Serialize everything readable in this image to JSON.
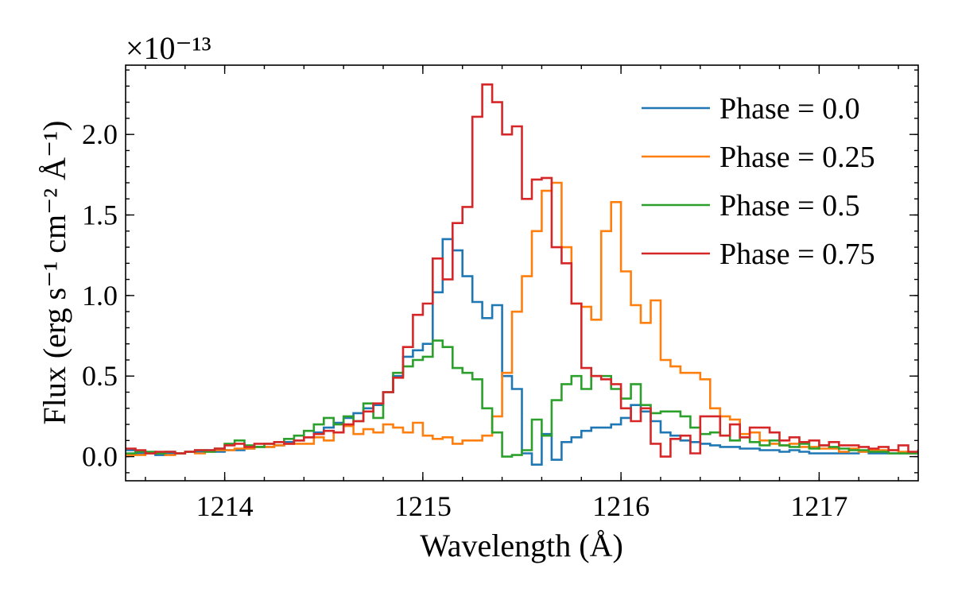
{
  "chart_data": {
    "type": "line",
    "step": "post",
    "xlabel": "Wavelength (Å)",
    "ylabel": "Flux (erg s⁻¹ cm⁻² Å⁻¹)",
    "y_offset_label": "×10⁻¹³",
    "xlim": [
      1213.5,
      1217.5
    ],
    "ylim": [
      -0.15,
      2.43
    ],
    "x_ticks": [
      1214,
      1215,
      1216,
      1217
    ],
    "x_tick_labels": [
      "1214",
      "1215",
      "1216",
      "1217"
    ],
    "y_ticks": [
      0.0,
      0.5,
      1.0,
      1.5,
      2.0
    ],
    "y_tick_labels": [
      "0.0",
      "0.5",
      "1.0",
      "1.5",
      "2.0"
    ],
    "grid": false,
    "legend_position": "top-right",
    "x_start": 1213.5,
    "x_step": 0.05,
    "series": [
      {
        "name": "Phase = 0.0",
        "color": "#1f77b4",
        "values": [
          0.04,
          0.02,
          0.02,
          0.01,
          0.02,
          0.02,
          0.03,
          0.03,
          0.04,
          0.03,
          0.04,
          0.04,
          0.05,
          0.06,
          0.06,
          0.07,
          0.09,
          0.1,
          0.12,
          0.15,
          0.18,
          0.21,
          0.24,
          0.27,
          0.3,
          0.32,
          0.4,
          0.5,
          0.62,
          0.66,
          0.7,
          1.02,
          1.35,
          1.28,
          1.12,
          0.96,
          0.86,
          0.94,
          0.5,
          0.42,
          0.02,
          -0.05,
          0.14,
          -0.02,
          0.09,
          0.12,
          0.16,
          0.18,
          0.18,
          0.2,
          0.24,
          0.32,
          0.28,
          0.22,
          0.15,
          0.13,
          0.1,
          0.09,
          0.08,
          0.07,
          0.06,
          0.06,
          0.05,
          0.05,
          0.04,
          0.04,
          0.03,
          0.04,
          0.03,
          0.02,
          0.02,
          0.02,
          0.02,
          0.02,
          0.03,
          0.02,
          0.02,
          0.02,
          0.02,
          0.02,
          0.02
        ]
      },
      {
        "name": "Phase = 0.25",
        "color": "#ff7f0e",
        "values": [
          0.01,
          0.01,
          0.02,
          0.02,
          0.01,
          0.02,
          0.03,
          0.02,
          0.03,
          0.04,
          0.04,
          0.05,
          0.05,
          0.06,
          0.06,
          0.07,
          0.08,
          0.08,
          0.08,
          0.12,
          0.1,
          0.15,
          0.19,
          0.14,
          0.17,
          0.15,
          0.2,
          0.18,
          0.15,
          0.21,
          0.13,
          0.11,
          0.12,
          0.08,
          0.1,
          0.1,
          0.13,
          0.25,
          0.52,
          0.9,
          1.12,
          1.4,
          1.65,
          1.7,
          1.3,
          0.95,
          0.93,
          0.85,
          1.4,
          1.58,
          1.15,
          0.94,
          0.83,
          0.97,
          0.6,
          0.56,
          0.52,
          0.52,
          0.48,
          0.3,
          0.25,
          0.23,
          0.14,
          0.15,
          0.1,
          0.08,
          0.07,
          0.08,
          0.06,
          0.06,
          0.05,
          0.05,
          0.03,
          0.05,
          0.03,
          0.04,
          0.04,
          0.04,
          0.03,
          0.02,
          0.02
        ]
      },
      {
        "name": "Phase = 0.5",
        "color": "#2ca02c",
        "values": [
          0.02,
          0.03,
          0.03,
          0.02,
          0.03,
          0.02,
          0.03,
          0.04,
          0.03,
          0.05,
          0.08,
          0.1,
          0.07,
          0.06,
          0.08,
          0.09,
          0.11,
          0.13,
          0.16,
          0.2,
          0.24,
          0.2,
          0.25,
          0.22,
          0.33,
          0.24,
          0.4,
          0.52,
          0.56,
          0.6,
          0.62,
          0.72,
          0.68,
          0.55,
          0.52,
          0.48,
          0.3,
          0.15,
          0.0,
          0.01,
          0.04,
          0.23,
          0.13,
          0.35,
          0.45,
          0.5,
          0.42,
          0.5,
          0.5,
          0.42,
          0.36,
          0.45,
          0.32,
          0.27,
          0.28,
          0.28,
          0.25,
          0.18,
          0.14,
          0.15,
          0.13,
          0.1,
          0.12,
          0.09,
          0.07,
          0.1,
          0.07,
          0.06,
          0.08,
          0.05,
          0.07,
          0.06,
          0.05,
          0.04,
          0.04,
          0.03,
          0.03,
          0.02,
          0.02,
          0.02,
          0.02
        ]
      },
      {
        "name": "Phase = 0.75",
        "color": "#d62728",
        "values": [
          0.05,
          0.04,
          0.02,
          0.03,
          0.03,
          0.02,
          0.03,
          0.04,
          0.04,
          0.05,
          0.07,
          0.08,
          0.06,
          0.08,
          0.08,
          0.09,
          0.08,
          0.1,
          0.12,
          0.14,
          0.16,
          0.15,
          0.2,
          0.22,
          0.28,
          0.33,
          0.4,
          0.49,
          0.68,
          0.88,
          0.95,
          1.23,
          1.1,
          1.45,
          1.55,
          2.11,
          2.31,
          2.2,
          2.0,
          2.05,
          1.6,
          1.72,
          1.73,
          1.3,
          1.2,
          0.95,
          0.55,
          0.5,
          0.48,
          0.45,
          0.3,
          0.22,
          0.3,
          0.08,
          0.0,
          0.11,
          0.13,
          0.02,
          0.25,
          0.25,
          0.13,
          0.2,
          0.12,
          0.18,
          0.18,
          0.15,
          0.1,
          0.12,
          0.09,
          0.1,
          0.07,
          0.09,
          0.07,
          0.07,
          0.06,
          0.05,
          0.06,
          0.04,
          0.07,
          0.03,
          0.04
        ]
      }
    ]
  }
}
